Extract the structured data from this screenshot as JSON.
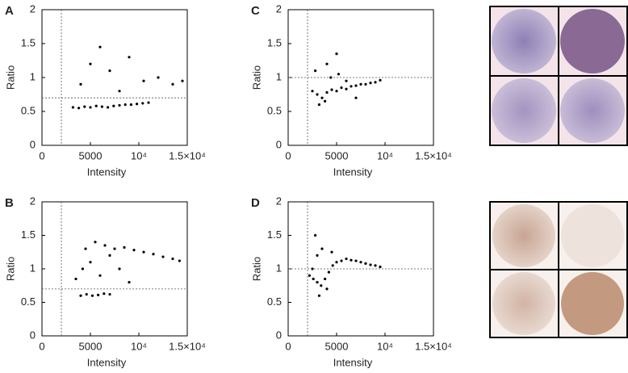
{
  "chart_data": [
    {
      "type": "scatter",
      "panel_label": "A",
      "xlabel": "Intensity",
      "ylabel": "Ratio",
      "xlim": [
        0,
        15000
      ],
      "ylim": [
        0,
        2
      ],
      "xticks": [
        0,
        5000,
        {
          "value": 10000,
          "label": "10⁴"
        },
        {
          "value": 15000,
          "label": "1.5×10⁴"
        }
      ],
      "yticks": [
        0,
        0.5,
        1,
        1.5,
        2
      ],
      "color": "#000000",
      "vlines": [
        2000
      ],
      "hlines": [
        0.7
      ],
      "x": [
        3200,
        3800,
        4400,
        5000,
        5600,
        6200,
        6800,
        7400,
        8000,
        8600,
        9200,
        9800,
        10400,
        11000,
        4000,
        5000,
        6000,
        7000,
        8000,
        9000,
        10500,
        12000,
        13500,
        14500
      ],
      "y": [
        0.56,
        0.55,
        0.57,
        0.56,
        0.58,
        0.57,
        0.56,
        0.58,
        0.59,
        0.6,
        0.6,
        0.61,
        0.62,
        0.63,
        0.9,
        1.2,
        1.45,
        1.1,
        0.8,
        1.3,
        0.95,
        1.0,
        0.9,
        0.95
      ]
    },
    {
      "type": "scatter",
      "panel_label": "B",
      "xlabel": "Intensity",
      "ylabel": "Ratio",
      "xlim": [
        0,
        15000
      ],
      "ylim": [
        0,
        2
      ],
      "xticks": [
        0,
        5000,
        {
          "value": 10000,
          "label": "10⁴"
        },
        {
          "value": 15000,
          "label": "1.5×10⁴"
        }
      ],
      "yticks": [
        0,
        0.5,
        1,
        1.5,
        2
      ],
      "color": "#000000",
      "vlines": [
        2000
      ],
      "hlines": [
        0.7
      ],
      "x": [
        4000,
        4600,
        5200,
        5800,
        6400,
        7000,
        4500,
        5500,
        6500,
        7500,
        8500,
        9500,
        10500,
        11500,
        12500,
        13500,
        14200,
        4200,
        5000,
        6000,
        7000,
        8000,
        9000,
        3500
      ],
      "y": [
        0.6,
        0.62,
        0.6,
        0.61,
        0.63,
        0.62,
        1.3,
        1.4,
        1.35,
        1.3,
        1.32,
        1.28,
        1.25,
        1.22,
        1.18,
        1.15,
        1.12,
        1.0,
        1.1,
        0.9,
        1.2,
        1.0,
        0.8,
        0.85
      ]
    },
    {
      "type": "scatter",
      "panel_label": "C",
      "xlabel": "Intensity",
      "ylabel": "Ratio",
      "xlim": [
        0,
        15000
      ],
      "ylim": [
        0,
        2
      ],
      "xticks": [
        0,
        5000,
        {
          "value": 10000,
          "label": "10⁴"
        },
        {
          "value": 15000,
          "label": "1.5×10⁴"
        }
      ],
      "yticks": [
        0,
        0.5,
        1,
        1.5,
        2
      ],
      "color": "#000000",
      "vlines": [
        2000
      ],
      "hlines": [
        1
      ],
      "x": [
        2500,
        3000,
        3500,
        4000,
        4500,
        5000,
        5500,
        6000,
        6500,
        7000,
        7500,
        8000,
        8500,
        9000,
        3200,
        3800,
        4400,
        5200,
        6000,
        4000,
        5000,
        2800,
        7000,
        9500
      ],
      "y": [
        0.8,
        0.75,
        0.7,
        0.78,
        0.82,
        0.8,
        0.85,
        0.83,
        0.87,
        0.88,
        0.9,
        0.9,
        0.92,
        0.93,
        0.6,
        0.65,
        1.0,
        1.05,
        0.95,
        1.2,
        1.35,
        1.1,
        0.7,
        0.96
      ]
    },
    {
      "type": "scatter",
      "panel_label": "D",
      "xlabel": "Intensity",
      "ylabel": "Ratio",
      "xlim": [
        0,
        15000
      ],
      "ylim": [
        0,
        2
      ],
      "xticks": [
        0,
        5000,
        {
          "value": 10000,
          "label": "10⁴"
        },
        {
          "value": 15000,
          "label": "1.5×10⁴"
        }
      ],
      "yticks": [
        0,
        0.5,
        1,
        1.5,
        2
      ],
      "color": "#000000",
      "vlines": [
        2000
      ],
      "hlines": [
        1
      ],
      "x": [
        2200,
        2600,
        3000,
        3400,
        3800,
        4200,
        4600,
        5000,
        5500,
        6000,
        6500,
        7000,
        7500,
        8000,
        8500,
        9000,
        9500,
        3000,
        3500,
        4000,
        2800,
        3200,
        4500,
        2500
      ],
      "y": [
        0.9,
        0.85,
        0.8,
        0.75,
        0.85,
        0.95,
        1.05,
        1.1,
        1.12,
        1.15,
        1.13,
        1.12,
        1.1,
        1.08,
        1.06,
        1.05,
        1.03,
        1.2,
        1.3,
        0.7,
        1.5,
        0.6,
        1.25,
        1.0
      ]
    }
  ]
}
